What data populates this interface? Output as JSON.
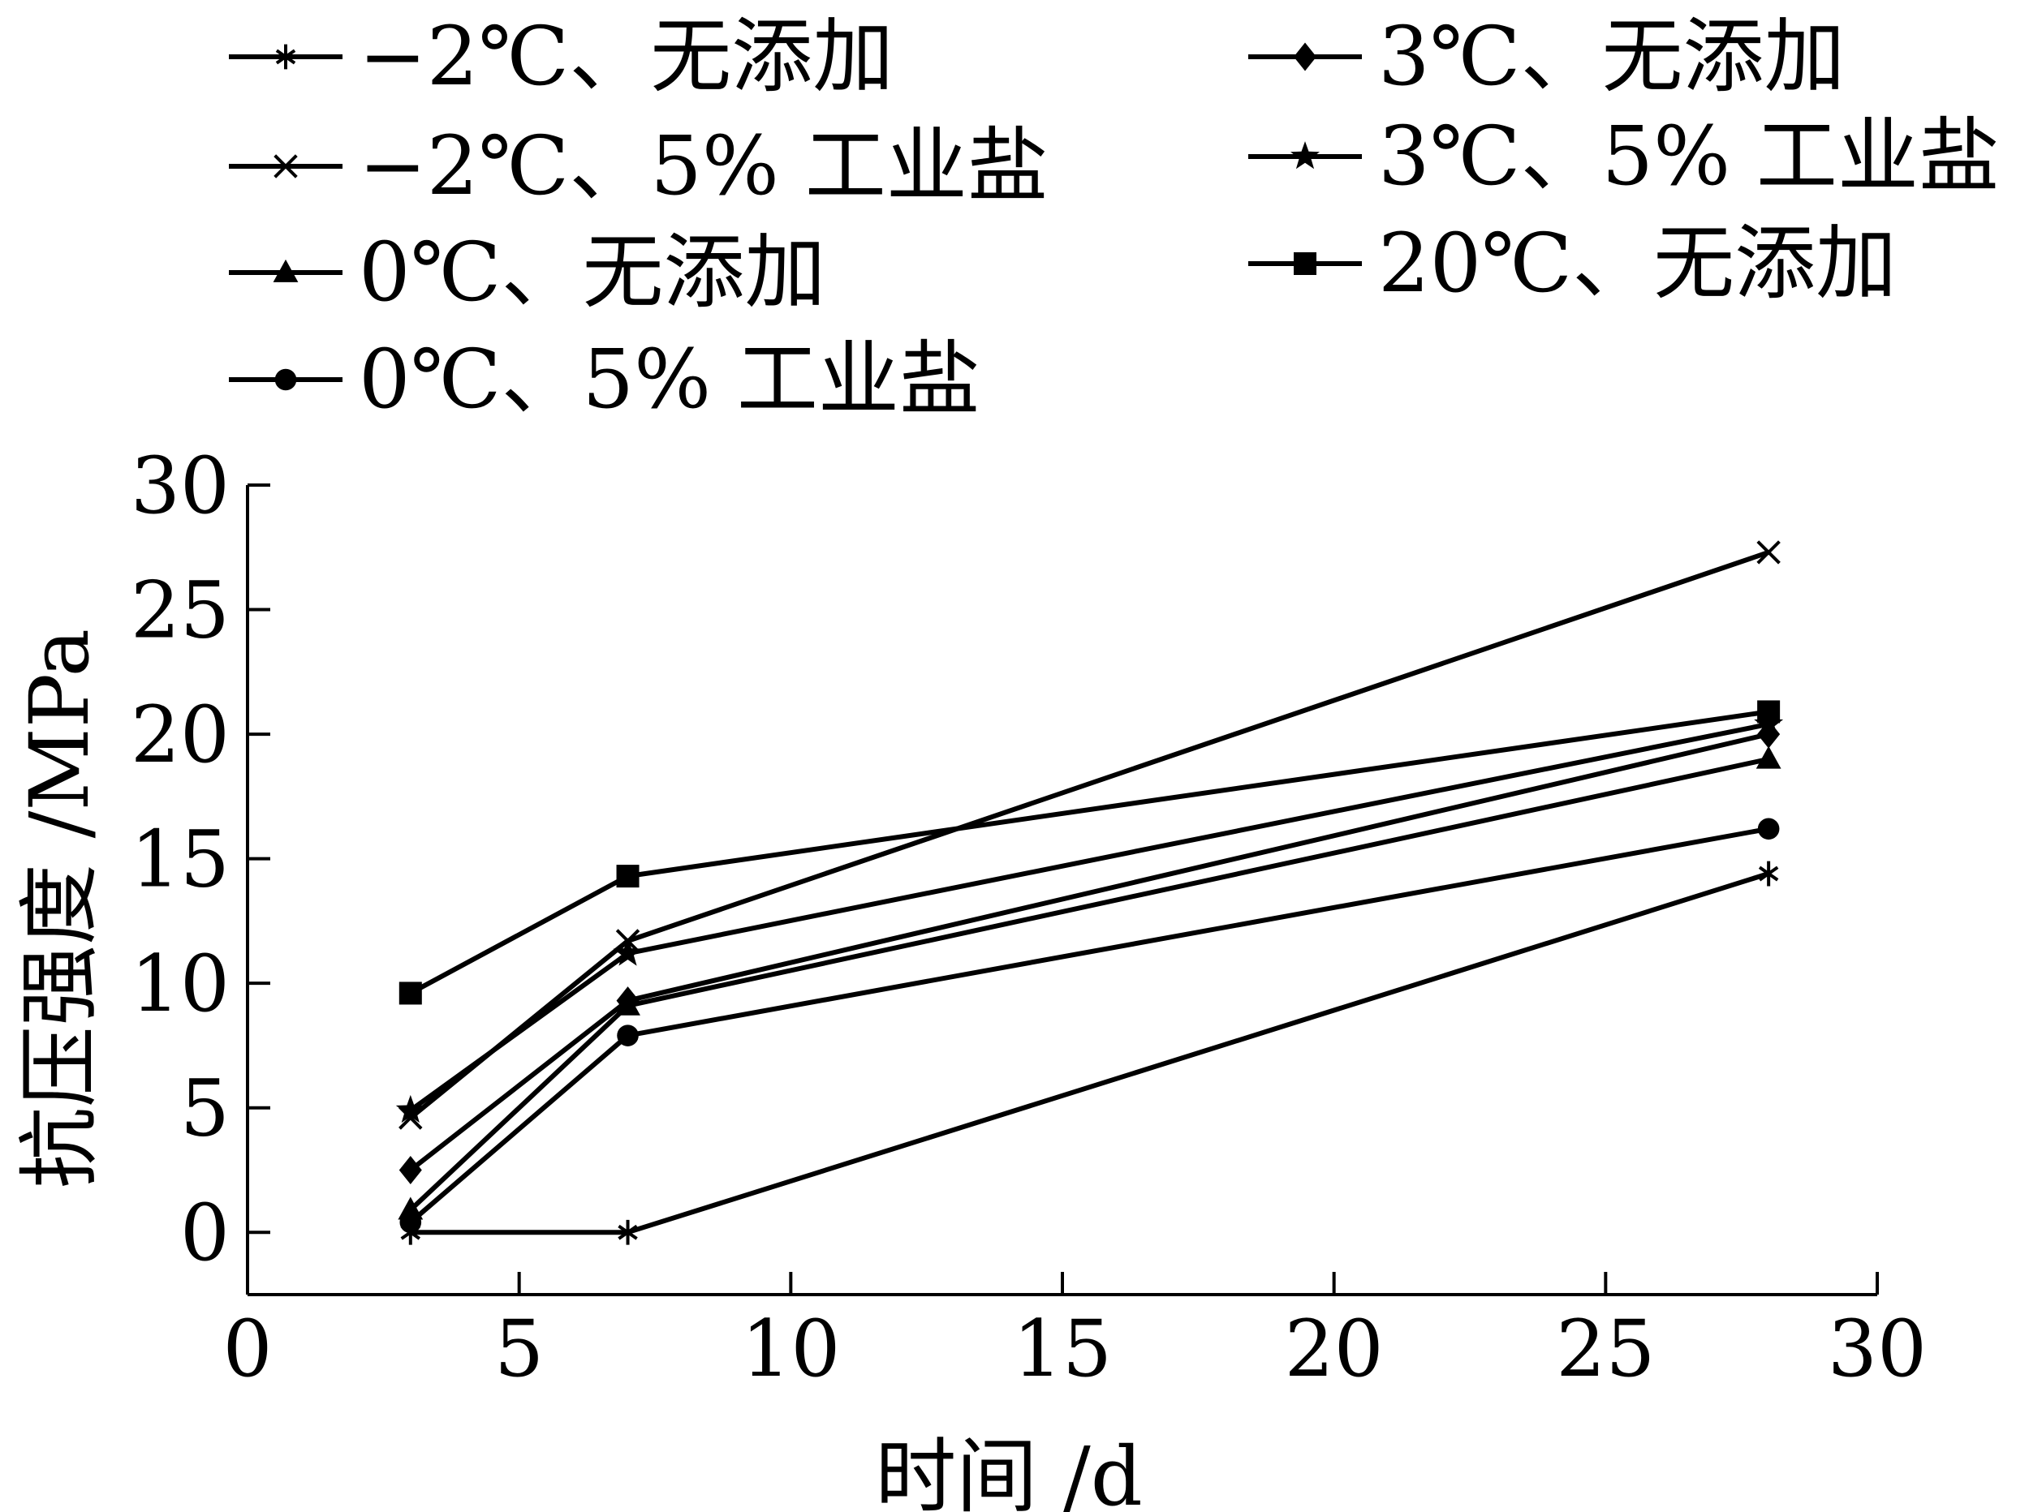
{
  "chart_data": {
    "type": "line",
    "xlabel": "时间 /d",
    "ylabel": "抗压强度 /MPa",
    "xlim": [
      0,
      30
    ],
    "ylim": [
      -2.5,
      30
    ],
    "xticks": [
      0,
      5,
      10,
      15,
      20,
      25,
      30
    ],
    "yticks": [
      0,
      5,
      10,
      15,
      20,
      25,
      30
    ],
    "x": [
      3,
      7,
      28
    ],
    "legend_position": "top",
    "grid": false,
    "series": [
      {
        "name": "−2℃、无添加",
        "marker": "asterisk",
        "values": [
          0,
          0,
          14.4
        ]
      },
      {
        "name": "−2℃、5% 工业盐",
        "marker": "x",
        "values": [
          4.6,
          11.7,
          27.3
        ]
      },
      {
        "name": "0℃、无添加",
        "marker": "triangle",
        "values": [
          0.9,
          9.1,
          19.0
        ]
      },
      {
        "name": "0℃、5% 工业盐",
        "marker": "circle",
        "values": [
          0.4,
          7.9,
          16.2
        ]
      },
      {
        "name": "3℃、无添加",
        "marker": "diamond",
        "values": [
          2.5,
          9.3,
          20.0
        ]
      },
      {
        "name": "3℃、5% 工业盐",
        "marker": "star",
        "values": [
          4.9,
          11.2,
          20.4
        ]
      },
      {
        "name": "20℃、无添加",
        "marker": "square",
        "values": [
          9.6,
          14.3,
          20.9
        ]
      }
    ]
  }
}
